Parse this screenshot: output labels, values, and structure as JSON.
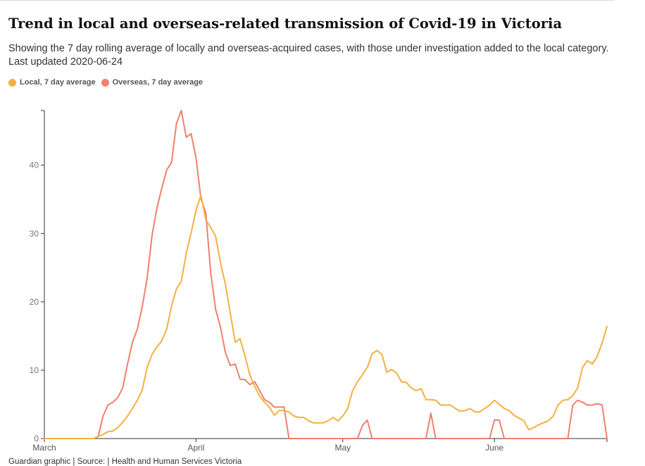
{
  "title": "Trend in local and overseas-related transmission of Covid-19 in Victoria",
  "subtitle": "Showing the 7 day rolling average of locally and overseas-acquired cases, with those under investigation added to the local category. Last updated 2020-06-24",
  "footer": "Guardian graphic | Source: | Health and Human Services Victoria",
  "chart_data": {
    "type": "line",
    "title": "Trend in local and overseas-related transmission of Covid-19 in Victoria",
    "xlabel": "",
    "ylabel": "",
    "ylim": [
      0,
      48
    ],
    "xlim": [
      "2020-03-01",
      "2020-06-24"
    ],
    "x_ticks": [
      "2020-03-01",
      "2020-04-01",
      "2020-05-01",
      "2020-06-01"
    ],
    "x_tick_labels": [
      "March",
      "April",
      "May",
      "June"
    ],
    "y_ticks": [
      0,
      10,
      20,
      30,
      40
    ],
    "y_tick_labels": [
      "0",
      "10",
      "20",
      "30",
      "40"
    ],
    "grid": false,
    "legend_position": "top-left",
    "x": [
      "2020-03-01",
      "2020-03-02",
      "2020-03-03",
      "2020-03-04",
      "2020-03-05",
      "2020-03-06",
      "2020-03-07",
      "2020-03-08",
      "2020-03-09",
      "2020-03-10",
      "2020-03-11",
      "2020-03-12",
      "2020-03-13",
      "2020-03-14",
      "2020-03-15",
      "2020-03-16",
      "2020-03-17",
      "2020-03-18",
      "2020-03-19",
      "2020-03-20",
      "2020-03-21",
      "2020-03-22",
      "2020-03-23",
      "2020-03-24",
      "2020-03-25",
      "2020-03-26",
      "2020-03-27",
      "2020-03-28",
      "2020-03-29",
      "2020-03-30",
      "2020-03-31",
      "2020-04-01",
      "2020-04-02",
      "2020-04-03",
      "2020-04-04",
      "2020-04-05",
      "2020-04-06",
      "2020-04-07",
      "2020-04-08",
      "2020-04-09",
      "2020-04-10",
      "2020-04-11",
      "2020-04-12",
      "2020-04-13",
      "2020-04-14",
      "2020-04-15",
      "2020-04-16",
      "2020-04-17",
      "2020-04-18",
      "2020-04-19",
      "2020-04-20",
      "2020-04-21",
      "2020-04-22",
      "2020-04-23",
      "2020-04-24",
      "2020-04-25",
      "2020-04-26",
      "2020-04-27",
      "2020-04-28",
      "2020-04-29",
      "2020-04-30",
      "2020-05-01",
      "2020-05-02",
      "2020-05-03",
      "2020-05-04",
      "2020-05-05",
      "2020-05-06",
      "2020-05-07",
      "2020-05-08",
      "2020-05-09",
      "2020-05-10",
      "2020-05-11",
      "2020-05-12",
      "2020-05-13",
      "2020-05-14",
      "2020-05-15",
      "2020-05-16",
      "2020-05-17",
      "2020-05-18",
      "2020-05-19",
      "2020-05-20",
      "2020-05-21",
      "2020-05-22",
      "2020-05-23",
      "2020-05-24",
      "2020-05-25",
      "2020-05-26",
      "2020-05-27",
      "2020-05-28",
      "2020-05-29",
      "2020-05-30",
      "2020-05-31",
      "2020-06-01",
      "2020-06-02",
      "2020-06-03",
      "2020-06-04",
      "2020-06-05",
      "2020-06-06",
      "2020-06-07",
      "2020-06-08",
      "2020-06-09",
      "2020-06-10",
      "2020-06-11",
      "2020-06-12",
      "2020-06-13",
      "2020-06-14",
      "2020-06-15",
      "2020-06-16",
      "2020-06-17",
      "2020-06-18",
      "2020-06-19",
      "2020-06-20",
      "2020-06-21",
      "2020-06-22",
      "2020-06-23",
      "2020-06-24"
    ],
    "series": [
      {
        "name": "Local, 7 day average",
        "color": "#f5b042",
        "values": [
          0,
          0,
          0,
          0,
          0,
          0,
          0,
          0,
          0,
          0,
          0,
          0.3,
          0.6,
          1.0,
          1.1,
          1.6,
          2.4,
          3.3,
          4.4,
          5.6,
          7.1,
          10.4,
          12.3,
          13.4,
          14.3,
          16.0,
          19.4,
          21.9,
          23.0,
          27.1,
          30.1,
          33.4,
          35.6,
          32.0,
          30.9,
          29.6,
          25.7,
          22.6,
          18.4,
          14.1,
          14.6,
          12.1,
          9.3,
          7.6,
          6.2,
          5.3,
          4.6,
          3.4,
          4.1,
          4.1,
          3.9,
          3.3,
          3.1,
          3.1,
          2.6,
          2.3,
          2.3,
          2.3,
          2.6,
          3.1,
          2.6,
          3.3,
          4.4,
          7.0,
          8.3,
          9.3,
          10.4,
          12.4,
          12.9,
          12.3,
          9.7,
          10.1,
          9.6,
          8.3,
          8.2,
          7.4,
          7.0,
          7.3,
          5.7,
          5.7,
          5.6,
          4.9,
          4.9,
          4.9,
          4.4,
          4.0,
          4.1,
          4.4,
          3.9,
          3.9,
          4.4,
          4.9,
          5.6,
          5.0,
          4.4,
          4.1,
          3.4,
          3.0,
          2.6,
          1.3,
          1.6,
          2.0,
          2.3,
          2.6,
          3.3,
          4.9,
          5.6,
          5.7,
          6.3,
          7.4,
          10.4,
          11.4,
          10.9,
          12.0,
          14.0,
          16.4
        ]
      },
      {
        "name": "Overseas, 7 day average",
        "color": "#f0806e",
        "values": [
          0,
          0,
          0,
          0,
          0,
          0,
          0,
          0,
          0,
          0,
          0,
          0.3,
          3.3,
          4.9,
          5.3,
          6.0,
          7.4,
          10.9,
          14.1,
          16.0,
          19.3,
          23.4,
          29.7,
          33.7,
          36.6,
          39.3,
          40.4,
          46.1,
          48.0,
          44.1,
          44.6,
          41.1,
          35.1,
          33.0,
          24.3,
          18.9,
          16.3,
          12.6,
          10.7,
          10.9,
          8.7,
          8.6,
          7.9,
          8.3,
          7.0,
          5.7,
          5.3,
          4.6,
          4.6,
          4.6,
          0,
          0,
          0,
          0,
          0,
          0,
          0,
          0,
          0,
          0,
          0,
          0,
          0,
          0,
          0,
          1.9,
          2.7,
          0,
          0,
          0,
          0,
          0,
          0,
          0,
          0,
          0,
          0,
          0,
          0,
          3.7,
          0,
          0,
          0,
          0,
          0,
          0,
          0,
          0,
          0,
          0,
          0,
          0,
          2.7,
          2.7,
          0,
          0,
          0,
          0,
          0,
          0,
          0,
          0,
          0,
          0,
          0,
          0,
          0,
          0,
          4.9,
          5.6,
          5.3,
          4.9,
          4.9,
          5.1,
          4.9,
          0
        ]
      }
    ]
  }
}
